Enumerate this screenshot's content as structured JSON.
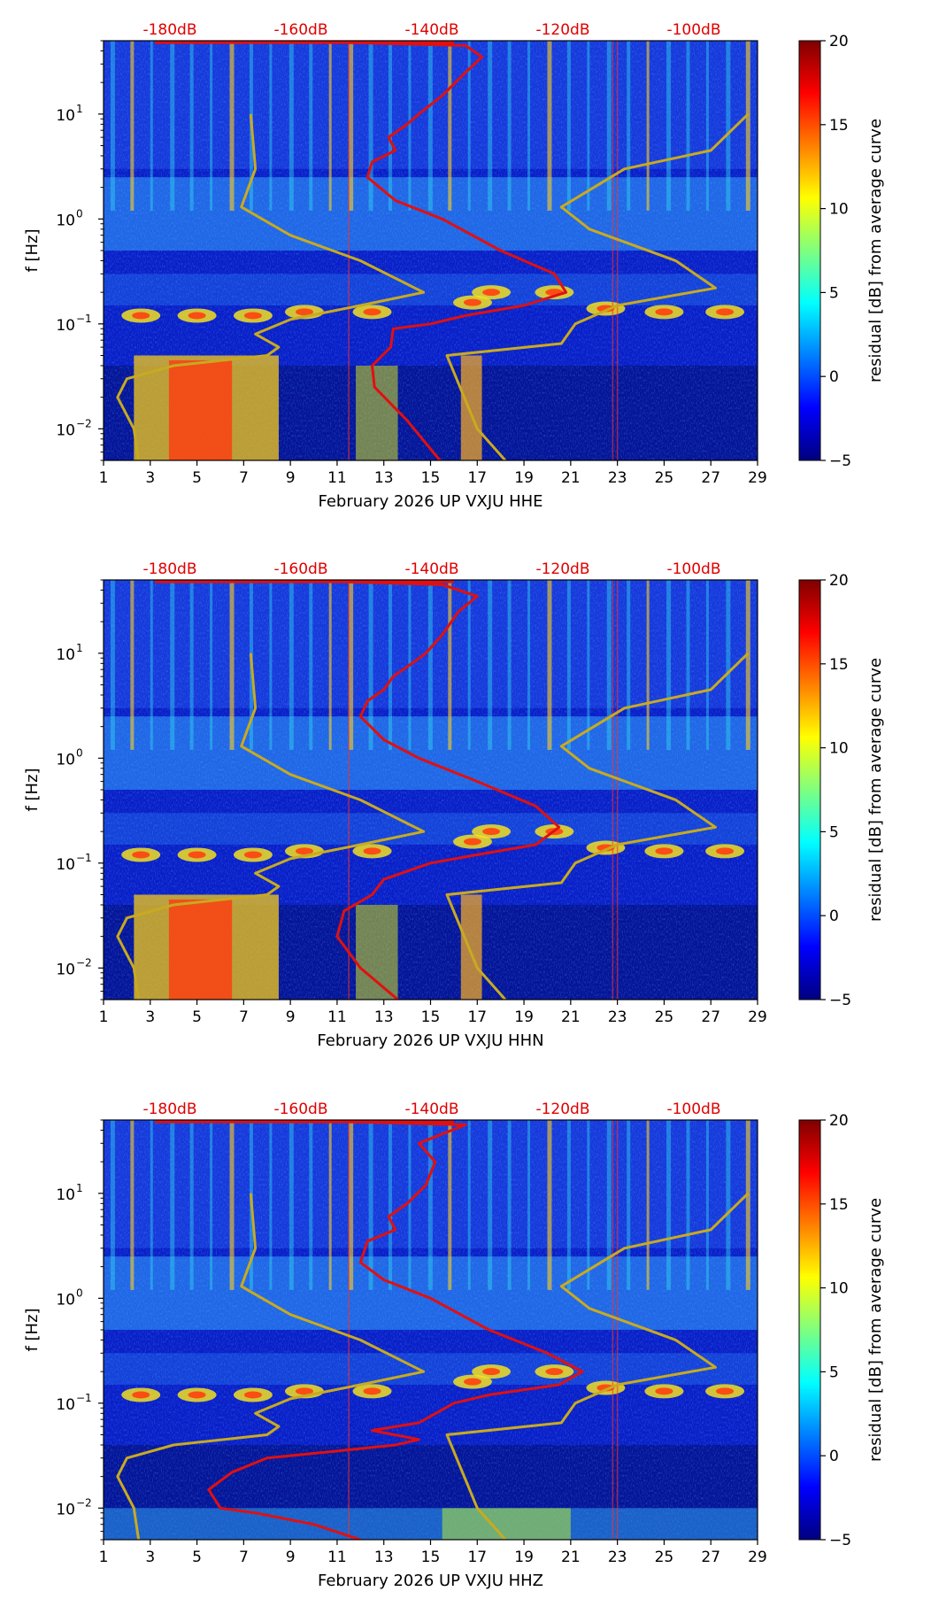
{
  "colorbar": {
    "label": "residual [dB] from average curve",
    "ticks": [
      "20",
      "15",
      "10",
      "5",
      "0",
      "−5"
    ],
    "range": [
      -5,
      20
    ]
  },
  "colors": {
    "db_scale": "#e00000",
    "psd_curve": "#e01010",
    "noise_model": "#c8aa20"
  },
  "chart_data": [
    {
      "type": "heatmap",
      "title": "February 2026 UP VXJU  HHE",
      "xlabel": "February 2026 UP VXJU  HHE",
      "ylabel": "f [Hz]",
      "x_ticks": [
        "1",
        "3",
        "5",
        "7",
        "9",
        "11",
        "13",
        "15",
        "17",
        "19",
        "21",
        "23",
        "25",
        "27",
        "29"
      ],
      "y_ticks": [
        "10−2",
        "10−1",
        "10°",
        "10¹"
      ],
      "y_ticks_display": [
        "10",
        "10",
        "10",
        "10"
      ],
      "y_exp": [
        "−2",
        "−1",
        "0",
        "1"
      ],
      "db_ticks": [
        "-180dB",
        "-160dB",
        "-140dB",
        "-120dB",
        "-100dB"
      ],
      "xlim": [
        1,
        29
      ],
      "ylim": [
        0.005,
        50
      ],
      "psd_curve": [
        [
          15.4,
          0.005
        ],
        [
          14.0,
          0.012
        ],
        [
          12.6,
          0.025
        ],
        [
          12.5,
          0.04
        ],
        [
          13.3,
          0.06
        ],
        [
          13.4,
          0.09
        ],
        [
          15.0,
          0.1
        ],
        [
          16.5,
          0.12
        ],
        [
          19.0,
          0.15
        ],
        [
          20.8,
          0.2
        ],
        [
          20.3,
          0.3
        ],
        [
          18.0,
          0.5
        ],
        [
          15.5,
          1.0
        ],
        [
          13.5,
          1.5
        ],
        [
          12.3,
          2.5
        ],
        [
          12.5,
          3.5
        ],
        [
          13.5,
          4.5
        ],
        [
          13.2,
          6
        ],
        [
          14.0,
          8
        ],
        [
          14.5,
          10
        ],
        [
          15.5,
          15
        ],
        [
          16.5,
          25
        ],
        [
          17.2,
          35
        ],
        [
          16.5,
          45
        ],
        [
          8.5,
          50
        ]
      ],
      "noise_low": [
        [
          2.5,
          0.005
        ],
        [
          2.3,
          0.01
        ],
        [
          1.6,
          0.02
        ],
        [
          2.0,
          0.03
        ],
        [
          4.0,
          0.04
        ],
        [
          8.0,
          0.05
        ],
        [
          8.5,
          0.06
        ],
        [
          7.5,
          0.08
        ],
        [
          9.0,
          0.11
        ],
        [
          12.0,
          0.15
        ],
        [
          14.7,
          0.2
        ],
        [
          12.0,
          0.4
        ],
        [
          9.0,
          0.7
        ],
        [
          6.9,
          1.3
        ],
        [
          7.5,
          3
        ],
        [
          7.3,
          10
        ]
      ],
      "noise_high": [
        [
          18.2,
          0.005
        ],
        [
          17.0,
          0.01
        ],
        [
          15.7,
          0.05
        ],
        [
          20.6,
          0.065
        ],
        [
          21.2,
          0.1
        ],
        [
          23.0,
          0.15
        ],
        [
          27.2,
          0.22
        ],
        [
          25.5,
          0.4
        ],
        [
          21.8,
          0.8
        ],
        [
          20.6,
          1.3
        ],
        [
          23.3,
          3
        ],
        [
          27.0,
          4.5
        ],
        [
          28.6,
          10
        ]
      ]
    },
    {
      "type": "heatmap",
      "title": "February 2026 UP VXJU  HHN",
      "xlabel": "February 2026 UP VXJU  HHN",
      "ylabel": "f [Hz]",
      "x_ticks": [
        "1",
        "3",
        "5",
        "7",
        "9",
        "11",
        "13",
        "15",
        "17",
        "19",
        "21",
        "23",
        "25",
        "27",
        "29"
      ],
      "y_ticks": [
        "10−2",
        "10−1",
        "10°",
        "10¹"
      ],
      "y_ticks_display": [
        "10",
        "10",
        "10",
        "10"
      ],
      "y_exp": [
        "−2",
        "−1",
        "0",
        "1"
      ],
      "db_ticks": [
        "-180dB",
        "-160dB",
        "-140dB",
        "-120dB",
        "-100dB"
      ],
      "xlim": [
        1,
        29
      ],
      "ylim": [
        0.005,
        50
      ],
      "psd_curve": [
        [
          13.6,
          0.005
        ],
        [
          12.0,
          0.01
        ],
        [
          11.0,
          0.02
        ],
        [
          11.3,
          0.035
        ],
        [
          12.5,
          0.05
        ],
        [
          13.0,
          0.07
        ],
        [
          15.0,
          0.1
        ],
        [
          17.0,
          0.12
        ],
        [
          19.5,
          0.15
        ],
        [
          20.5,
          0.22
        ],
        [
          19.5,
          0.35
        ],
        [
          17.0,
          0.6
        ],
        [
          14.5,
          1.0
        ],
        [
          13.0,
          1.5
        ],
        [
          12.0,
          2.5
        ],
        [
          12.3,
          3.5
        ],
        [
          13.0,
          4.5
        ],
        [
          13.4,
          6
        ],
        [
          14.2,
          8
        ],
        [
          14.8,
          10
        ],
        [
          15.5,
          15
        ],
        [
          16.2,
          25
        ],
        [
          17.0,
          35
        ],
        [
          15.5,
          45
        ],
        [
          8.5,
          50
        ]
      ],
      "noise_low": [
        [
          2.5,
          0.005
        ],
        [
          2.3,
          0.01
        ],
        [
          1.6,
          0.02
        ],
        [
          2.0,
          0.03
        ],
        [
          4.0,
          0.04
        ],
        [
          8.0,
          0.05
        ],
        [
          8.5,
          0.06
        ],
        [
          7.5,
          0.08
        ],
        [
          9.0,
          0.11
        ],
        [
          12.0,
          0.15
        ],
        [
          14.7,
          0.2
        ],
        [
          12.0,
          0.4
        ],
        [
          9.0,
          0.7
        ],
        [
          6.9,
          1.3
        ],
        [
          7.5,
          3
        ],
        [
          7.3,
          10
        ]
      ],
      "noise_high": [
        [
          18.2,
          0.005
        ],
        [
          17.0,
          0.01
        ],
        [
          15.7,
          0.05
        ],
        [
          20.6,
          0.065
        ],
        [
          21.2,
          0.1
        ],
        [
          23.0,
          0.15
        ],
        [
          27.2,
          0.22
        ],
        [
          25.5,
          0.4
        ],
        [
          21.8,
          0.8
        ],
        [
          20.6,
          1.3
        ],
        [
          23.3,
          3
        ],
        [
          27.0,
          4.5
        ],
        [
          28.6,
          10
        ]
      ]
    },
    {
      "type": "heatmap",
      "title": "February 2026 UP VXJU  HHZ",
      "xlabel": "February 2026 UP VXJU  HHZ",
      "ylabel": "f [Hz]",
      "x_ticks": [
        "1",
        "3",
        "5",
        "7",
        "9",
        "11",
        "13",
        "15",
        "17",
        "19",
        "21",
        "23",
        "25",
        "27",
        "29"
      ],
      "y_ticks": [
        "10−2",
        "10−1",
        "10°",
        "10¹"
      ],
      "y_ticks_display": [
        "10",
        "10",
        "10",
        "10"
      ],
      "y_exp": [
        "−2",
        "−1",
        "0",
        "1"
      ],
      "db_ticks": [
        "-180dB",
        "-160dB",
        "-140dB",
        "-120dB",
        "-100dB"
      ],
      "xlim": [
        1,
        29
      ],
      "ylim": [
        0.005,
        50
      ],
      "psd_curve": [
        [
          12.0,
          0.005
        ],
        [
          10.0,
          0.007
        ],
        [
          7.5,
          0.009
        ],
        [
          6.0,
          0.01
        ],
        [
          5.5,
          0.015
        ],
        [
          6.5,
          0.022
        ],
        [
          8.0,
          0.03
        ],
        [
          11.0,
          0.035
        ],
        [
          13.5,
          0.04
        ],
        [
          14.5,
          0.045
        ],
        [
          12.5,
          0.055
        ],
        [
          14.5,
          0.065
        ],
        [
          16.0,
          0.1
        ],
        [
          17.5,
          0.12
        ],
        [
          20.5,
          0.15
        ],
        [
          21.5,
          0.2
        ],
        [
          20.0,
          0.3
        ],
        [
          17.5,
          0.5
        ],
        [
          15.0,
          1.0
        ],
        [
          13.0,
          1.5
        ],
        [
          12.0,
          2.2
        ],
        [
          12.3,
          3.5
        ],
        [
          13.5,
          4.5
        ],
        [
          13.2,
          6
        ],
        [
          14.0,
          8
        ],
        [
          14.8,
          12
        ],
        [
          15.2,
          20
        ],
        [
          14.5,
          30
        ],
        [
          16.5,
          45
        ],
        [
          8.5,
          50
        ]
      ],
      "noise_low": [
        [
          2.5,
          0.005
        ],
        [
          2.3,
          0.01
        ],
        [
          1.6,
          0.02
        ],
        [
          2.0,
          0.03
        ],
        [
          4.0,
          0.04
        ],
        [
          8.0,
          0.05
        ],
        [
          8.5,
          0.06
        ],
        [
          7.5,
          0.08
        ],
        [
          9.0,
          0.11
        ],
        [
          12.0,
          0.15
        ],
        [
          14.7,
          0.2
        ],
        [
          12.0,
          0.4
        ],
        [
          9.0,
          0.7
        ],
        [
          6.9,
          1.3
        ],
        [
          7.5,
          3
        ],
        [
          7.3,
          10
        ]
      ],
      "noise_high": [
        [
          18.2,
          0.005
        ],
        [
          17.0,
          0.01
        ],
        [
          15.7,
          0.05
        ],
        [
          20.6,
          0.065
        ],
        [
          21.2,
          0.1
        ],
        [
          23.0,
          0.15
        ],
        [
          27.2,
          0.22
        ],
        [
          25.5,
          0.4
        ],
        [
          21.8,
          0.8
        ],
        [
          20.6,
          1.3
        ],
        [
          23.3,
          3
        ],
        [
          27.0,
          4.5
        ],
        [
          28.6,
          10
        ]
      ]
    }
  ]
}
